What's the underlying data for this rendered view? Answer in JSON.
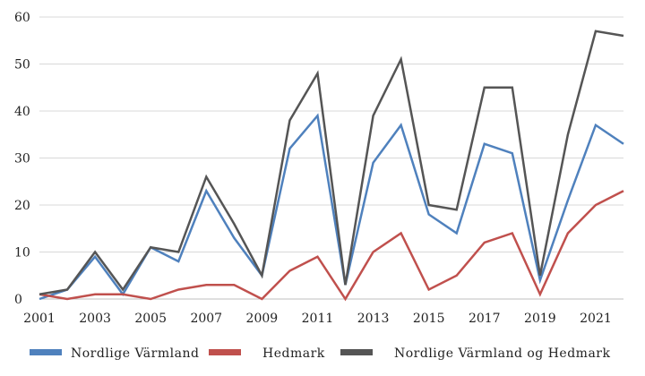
{
  "chart_data": {
    "type": "line",
    "title": "",
    "xlabel": "",
    "ylabel": "",
    "ylim": [
      0,
      60
    ],
    "yticks": [
      0,
      10,
      20,
      30,
      40,
      50,
      60
    ],
    "grid": "horizontal",
    "legend_position": "bottom",
    "x": [
      2001,
      2002,
      2003,
      2004,
      2005,
      2006,
      2007,
      2008,
      2009,
      2010,
      2011,
      2012,
      2013,
      2014,
      2015,
      2016,
      2017,
      2018,
      2019,
      2020,
      2021,
      2022
    ],
    "xtick_labels": [
      "2001",
      "2003",
      "2005",
      "2007",
      "2009",
      "2011",
      "2013",
      "2015",
      "2017",
      "2019",
      "2021"
    ],
    "series": [
      {
        "name": "Nordlige Värmland",
        "color": "#4f81bd",
        "values": [
          0,
          2,
          9,
          1,
          11,
          8,
          23,
          13,
          5,
          32,
          39,
          3,
          29,
          37,
          18,
          14,
          33,
          31,
          4,
          21,
          37,
          33
        ]
      },
      {
        "name": "Hedmark",
        "color": "#c0504d",
        "values": [
          1,
          0,
          1,
          1,
          0,
          2,
          3,
          3,
          0,
          6,
          9,
          0,
          10,
          14,
          2,
          5,
          12,
          14,
          1,
          14,
          20,
          23
        ]
      },
      {
        "name": "Nordlige Värmland og Hedmark",
        "color": "#555555",
        "values": [
          1,
          2,
          10,
          2,
          11,
          10,
          26,
          16,
          5,
          38,
          48,
          3,
          39,
          51,
          20,
          19,
          45,
          45,
          5,
          35,
          57,
          56
        ]
      }
    ]
  }
}
